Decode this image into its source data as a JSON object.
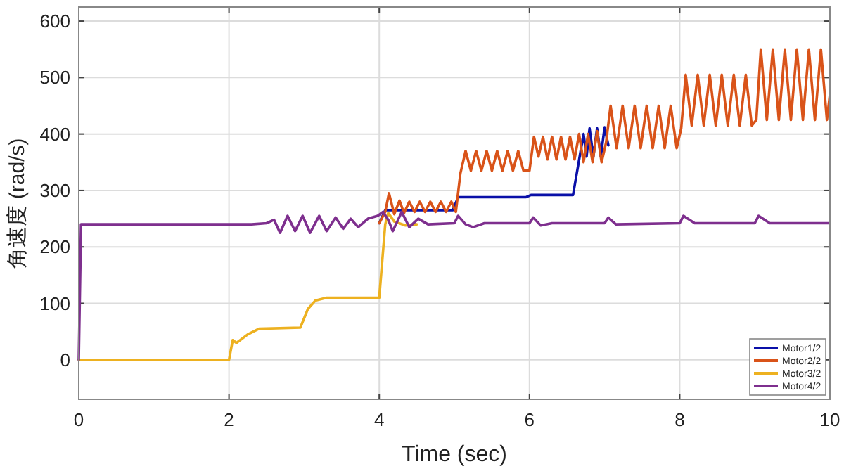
{
  "chart_data": {
    "type": "line",
    "xlabel": "Time (sec)",
    "ylabel": "角速度 (rad/s)",
    "xlim": [
      0,
      10
    ],
    "ylim": [
      -70,
      625
    ],
    "xticks": [
      0,
      2,
      4,
      6,
      8,
      10
    ],
    "yticks": [
      0,
      100,
      200,
      300,
      400,
      500,
      600
    ],
    "grid": true,
    "legend": "bottom right",
    "line_style": "solid",
    "series": [
      {
        "name": "Motor1/2",
        "color": "#0a10a8",
        "x": [
          4.0,
          4.08,
          4.98,
          5.05,
          5.95,
          6.02,
          6.58,
          6.72,
          6.76,
          6.8,
          6.85,
          6.9,
          6.95,
          7.0,
          7.05
        ],
        "values": [
          242,
          265,
          265,
          288,
          288,
          292,
          292,
          400,
          360,
          410,
          360,
          410,
          360,
          412,
          380
        ]
      },
      {
        "name": "Motor2/2",
        "color": "#d95319",
        "x": [
          4.0,
          4.08,
          4.13,
          4.2,
          4.27,
          4.33,
          4.4,
          4.47,
          4.54,
          4.61,
          4.68,
          4.75,
          4.82,
          4.89,
          4.96,
          5.02,
          5.08,
          5.15,
          5.22,
          5.29,
          5.36,
          5.43,
          5.5,
          5.57,
          5.64,
          5.71,
          5.78,
          5.85,
          5.92,
          6.0,
          6.06,
          6.12,
          6.18,
          6.24,
          6.3,
          6.36,
          6.42,
          6.48,
          6.54,
          6.6,
          6.66,
          6.72,
          6.78,
          6.84,
          6.9,
          6.96,
          7.02,
          7.08,
          7.16,
          7.24,
          7.32,
          7.4,
          7.48,
          7.56,
          7.64,
          7.72,
          7.8,
          7.88,
          7.96,
          8.02,
          8.08,
          8.16,
          8.24,
          8.32,
          8.4,
          8.48,
          8.56,
          8.64,
          8.72,
          8.8,
          8.88,
          8.96,
          9.02,
          9.08,
          9.16,
          9.24,
          9.32,
          9.4,
          9.48,
          9.56,
          9.64,
          9.72,
          9.8,
          9.88,
          9.96,
          10.0
        ],
        "values": [
          242,
          262,
          295,
          258,
          282,
          260,
          280,
          262,
          280,
          262,
          280,
          262,
          280,
          262,
          280,
          262,
          330,
          370,
          335,
          370,
          335,
          370,
          335,
          370,
          335,
          370,
          335,
          370,
          335,
          335,
          395,
          360,
          395,
          355,
          395,
          355,
          395,
          355,
          395,
          355,
          400,
          350,
          400,
          350,
          405,
          350,
          385,
          450,
          375,
          450,
          375,
          450,
          375,
          450,
          375,
          450,
          375,
          450,
          375,
          410,
          505,
          415,
          505,
          415,
          505,
          415,
          505,
          415,
          505,
          415,
          505,
          415,
          425,
          550,
          425,
          550,
          425,
          550,
          425,
          550,
          425,
          550,
          425,
          550,
          425,
          470
        ]
      },
      {
        "name": "Motor3/2",
        "color": "#edb120",
        "x": [
          0,
          2.0,
          2.05,
          2.1,
          2.25,
          2.4,
          2.95,
          3.05,
          3.15,
          3.3,
          4.0,
          4.08,
          4.12,
          4.2,
          4.35,
          4.5
        ],
        "values": [
          0,
          0,
          35,
          30,
          45,
          55,
          57,
          90,
          105,
          110,
          110,
          240,
          260,
          245,
          238,
          240
        ]
      },
      {
        "name": "Motor4/2",
        "color": "#7e2f8e",
        "x": [
          0,
          0.03,
          2.3,
          2.5,
          2.6,
          2.68,
          2.78,
          2.88,
          2.98,
          3.08,
          3.2,
          3.3,
          3.42,
          3.52,
          3.62,
          3.72,
          3.85,
          3.98,
          4.05,
          4.12,
          4.18,
          4.3,
          4.4,
          4.52,
          4.65,
          5.0,
          5.05,
          5.15,
          5.25,
          5.4,
          6.0,
          6.05,
          6.15,
          6.3,
          7.0,
          7.05,
          7.15,
          8.0,
          8.05,
          8.2,
          9.0,
          9.05,
          9.2,
          10
        ],
        "values": [
          0,
          240,
          240,
          242,
          248,
          225,
          255,
          228,
          255,
          225,
          255,
          228,
          252,
          232,
          250,
          235,
          250,
          255,
          262,
          248,
          228,
          262,
          235,
          250,
          240,
          242,
          255,
          240,
          235,
          242,
          242,
          252,
          238,
          242,
          242,
          252,
          240,
          242,
          255,
          242,
          242,
          255,
          242,
          242
        ]
      }
    ]
  }
}
